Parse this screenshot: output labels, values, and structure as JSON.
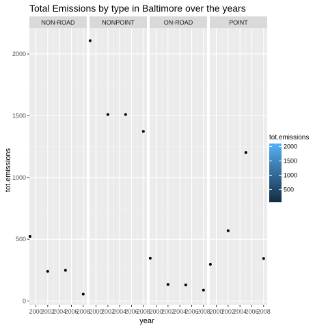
{
  "chart_data": {
    "type": "scatter",
    "title": "Total Emissions by type in Baltimore over the years",
    "xlabel": "year",
    "ylabel": "tot.emissions",
    "x_ticks": [
      2000,
      2002,
      2004,
      2006,
      2008
    ],
    "x_tick_labels": [
      "2000",
      "2002",
      "2004",
      "2006",
      "2008"
    ],
    "xlim": [
      1998.9,
      2008.6
    ],
    "y_ticks": [
      0,
      500,
      1000,
      1500,
      2000
    ],
    "y_tick_labels": [
      "0",
      "500",
      "1000",
      "1500",
      "2000"
    ],
    "ylim": [
      -30,
      2210
    ],
    "grid": true,
    "facets": [
      {
        "label": "NON-ROAD",
        "points": [
          {
            "x": 1999,
            "y": 522.94
          },
          {
            "x": 2002,
            "y": 240.85
          },
          {
            "x": 2005,
            "y": 248.93
          },
          {
            "x": 2008,
            "y": 55.82
          }
        ]
      },
      {
        "label": "NONPOINT",
        "points": [
          {
            "x": 1999,
            "y": 2107.63
          },
          {
            "x": 2002,
            "y": 1509.5
          },
          {
            "x": 2005,
            "y": 1509.5
          },
          {
            "x": 2008,
            "y": 1373.21
          }
        ]
      },
      {
        "label": "ON-ROAD",
        "points": [
          {
            "x": 1999,
            "y": 346.82
          },
          {
            "x": 2002,
            "y": 134.31
          },
          {
            "x": 2005,
            "y": 130.43
          },
          {
            "x": 2008,
            "y": 88.28
          }
        ]
      },
      {
        "label": "POINT",
        "points": [
          {
            "x": 1999,
            "y": 296.8
          },
          {
            "x": 2002,
            "y": 569.26
          },
          {
            "x": 2005,
            "y": 1202.49
          },
          {
            "x": 2008,
            "y": 344.98
          }
        ]
      }
    ],
    "legend": {
      "title": "tot.emissions",
      "placement": "right",
      "breaks": [
        500,
        1000,
        1500,
        2000
      ],
      "break_labels": [
        "500",
        "1000",
        "1500",
        "2000"
      ],
      "range": [
        55.82,
        2107.63
      ],
      "color_low": "#132B43",
      "color_high": "#56B1F7"
    },
    "point_color": "#000000"
  }
}
